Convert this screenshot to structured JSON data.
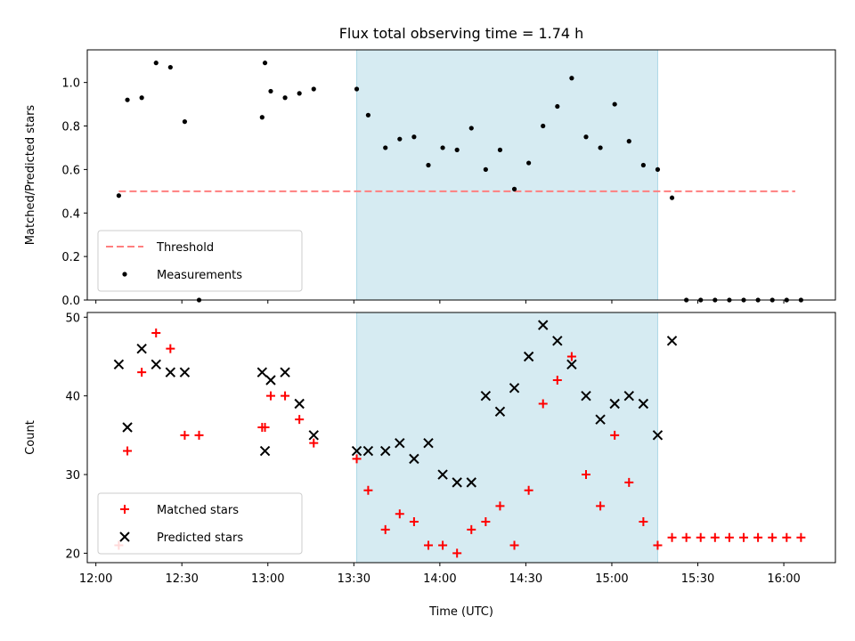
{
  "chart_data": [
    {
      "type": "scatter",
      "title": "Flux total observing time = 1.74 h",
      "xlabel": "",
      "ylabel": "Matched/Predicted stars",
      "xlim": [
        "11:57",
        "16:18"
      ],
      "ylim": [
        0,
        1.15
      ],
      "yticks": [
        "0.0",
        "0.2",
        "0.4",
        "0.6",
        "0.8",
        "1.0"
      ],
      "shaded_region": {
        "x": [
          "13:31",
          "15:16"
        ],
        "color": "#add8e6"
      },
      "threshold": {
        "name": "Threshold",
        "y": 0.5,
        "x": [
          "12:08",
          "16:04"
        ],
        "color": "#ff7f7f"
      },
      "series": [
        {
          "name": "Measurements",
          "color": "#000000",
          "marker": "dot",
          "points": [
            [
              "12:08",
              0.48
            ],
            [
              "12:11",
              0.92
            ],
            [
              "12:16",
              0.93
            ],
            [
              "12:21",
              1.09
            ],
            [
              "12:26",
              1.07
            ],
            [
              "12:31",
              0.82
            ],
            [
              "12:36",
              0.0
            ],
            [
              "12:58",
              0.84
            ],
            [
              "12:59",
              1.09
            ],
            [
              "13:01",
              0.96
            ],
            [
              "13:06",
              0.93
            ],
            [
              "13:11",
              0.95
            ],
            [
              "13:16",
              0.97
            ],
            [
              "13:31",
              0.97
            ],
            [
              "13:35",
              0.85
            ],
            [
              "13:41",
              0.7
            ],
            [
              "13:46",
              0.74
            ],
            [
              "13:51",
              0.75
            ],
            [
              "13:56",
              0.62
            ],
            [
              "14:01",
              0.7
            ],
            [
              "14:06",
              0.69
            ],
            [
              "14:11",
              0.79
            ],
            [
              "14:16",
              0.6
            ],
            [
              "14:21",
              0.69
            ],
            [
              "14:26",
              0.51
            ],
            [
              "14:31",
              0.63
            ],
            [
              "14:36",
              0.8
            ],
            [
              "14:41",
              0.89
            ],
            [
              "14:46",
              1.02
            ],
            [
              "14:51",
              0.75
            ],
            [
              "14:56",
              0.7
            ],
            [
              "15:01",
              0.9
            ],
            [
              "15:06",
              0.73
            ],
            [
              "15:11",
              0.62
            ],
            [
              "15:16",
              0.6
            ],
            [
              "15:21",
              0.47
            ],
            [
              "15:26",
              0.0
            ],
            [
              "15:31",
              0.0
            ],
            [
              "15:36",
              0.0
            ],
            [
              "15:41",
              0.0
            ],
            [
              "15:46",
              0.0
            ],
            [
              "15:51",
              0.0
            ],
            [
              "15:56",
              0.0
            ],
            [
              "16:01",
              0.0
            ],
            [
              "16:06",
              0.0
            ]
          ]
        }
      ],
      "legend": {
        "position": "lower-left"
      }
    },
    {
      "type": "scatter",
      "title": "",
      "xlabel": "Time (UTC)",
      "ylabel": "Count",
      "xlim": [
        "11:57",
        "16:18"
      ],
      "ylim": [
        18.8,
        50.6
      ],
      "xticks": [
        "12:00",
        "12:30",
        "13:00",
        "13:30",
        "14:00",
        "14:30",
        "15:00",
        "15:30",
        "16:00"
      ],
      "yticks": [
        "20",
        "30",
        "40",
        "50"
      ],
      "shaded_region": {
        "x": [
          "13:31",
          "15:16"
        ],
        "color": "#add8e6"
      },
      "series": [
        {
          "name": "Matched stars",
          "color": "#ff0000",
          "marker": "plus",
          "points": [
            [
              "12:08",
              21
            ],
            [
              "12:11",
              33
            ],
            [
              "12:16",
              43
            ],
            [
              "12:21",
              48
            ],
            [
              "12:26",
              46
            ],
            [
              "12:31",
              35
            ],
            [
              "12:36",
              35
            ],
            [
              "12:58",
              36
            ],
            [
              "12:59",
              36
            ],
            [
              "13:01",
              40
            ],
            [
              "13:06",
              40
            ],
            [
              "13:11",
              37
            ],
            [
              "13:16",
              34
            ],
            [
              "13:31",
              32
            ],
            [
              "13:35",
              28
            ],
            [
              "13:41",
              23
            ],
            [
              "13:46",
              25
            ],
            [
              "13:51",
              24
            ],
            [
              "13:56",
              21
            ],
            [
              "14:01",
              21
            ],
            [
              "14:06",
              20
            ],
            [
              "14:11",
              23
            ],
            [
              "14:16",
              24
            ],
            [
              "14:21",
              26
            ],
            [
              "14:26",
              21
            ],
            [
              "14:31",
              28
            ],
            [
              "14:36",
              39
            ],
            [
              "14:41",
              42
            ],
            [
              "14:46",
              45
            ],
            [
              "14:51",
              30
            ],
            [
              "14:56",
              26
            ],
            [
              "15:01",
              35
            ],
            [
              "15:06",
              29
            ],
            [
              "15:11",
              24
            ],
            [
              "15:16",
              21
            ],
            [
              "15:21",
              22
            ],
            [
              "15:26",
              22
            ],
            [
              "15:31",
              22
            ],
            [
              "15:36",
              22
            ],
            [
              "15:41",
              22
            ],
            [
              "15:46",
              22
            ],
            [
              "15:51",
              22
            ],
            [
              "15:56",
              22
            ],
            [
              "16:01",
              22
            ],
            [
              "16:06",
              22
            ]
          ]
        },
        {
          "name": "Predicted stars",
          "color": "#000000",
          "marker": "x",
          "points": [
            [
              "12:08",
              44
            ],
            [
              "12:11",
              36
            ],
            [
              "12:16",
              46
            ],
            [
              "12:21",
              44
            ],
            [
              "12:26",
              43
            ],
            [
              "12:31",
              43
            ],
            [
              "12:58",
              43
            ],
            [
              "12:59",
              33
            ],
            [
              "13:01",
              42
            ],
            [
              "13:06",
              43
            ],
            [
              "13:11",
              39
            ],
            [
              "13:16",
              35
            ],
            [
              "13:31",
              33
            ],
            [
              "13:35",
              33
            ],
            [
              "13:41",
              33
            ],
            [
              "13:46",
              34
            ],
            [
              "13:51",
              32
            ],
            [
              "13:56",
              34
            ],
            [
              "14:01",
              30
            ],
            [
              "14:06",
              29
            ],
            [
              "14:11",
              29
            ],
            [
              "14:16",
              40
            ],
            [
              "14:21",
              38
            ],
            [
              "14:26",
              41
            ],
            [
              "14:31",
              45
            ],
            [
              "14:36",
              49
            ],
            [
              "14:41",
              47
            ],
            [
              "14:46",
              44
            ],
            [
              "14:51",
              40
            ],
            [
              "14:56",
              37
            ],
            [
              "15:01",
              39
            ],
            [
              "15:06",
              40
            ],
            [
              "15:11",
              39
            ],
            [
              "15:16",
              35
            ],
            [
              "15:21",
              47
            ]
          ]
        }
      ],
      "legend": {
        "position": "lower-left"
      }
    }
  ]
}
